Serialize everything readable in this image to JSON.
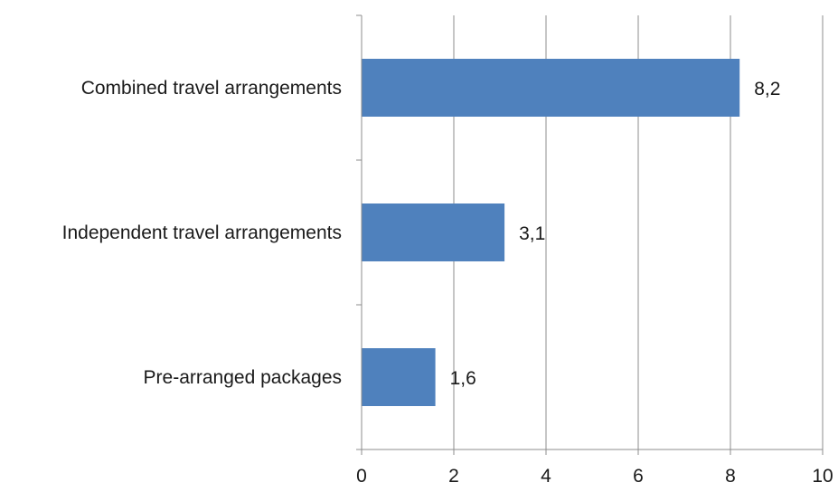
{
  "chart_data": {
    "type": "bar",
    "orientation": "horizontal",
    "categories": [
      "Combined travel arrangements",
      "Independent travel arrangements",
      "Pre-arranged packages"
    ],
    "values": [
      8.2,
      3.1,
      1.6
    ],
    "value_labels": [
      "8,2",
      "3,1",
      "1,6"
    ],
    "xlim": [
      0,
      10
    ],
    "x_ticks": [
      0,
      2,
      4,
      6,
      8,
      10
    ],
    "x_tick_labels": [
      "0",
      "2",
      "4",
      "6",
      "8",
      "10"
    ],
    "grid": "vertical",
    "bar_color": "#4f81bd",
    "grid_color": "#8c8c8c"
  }
}
